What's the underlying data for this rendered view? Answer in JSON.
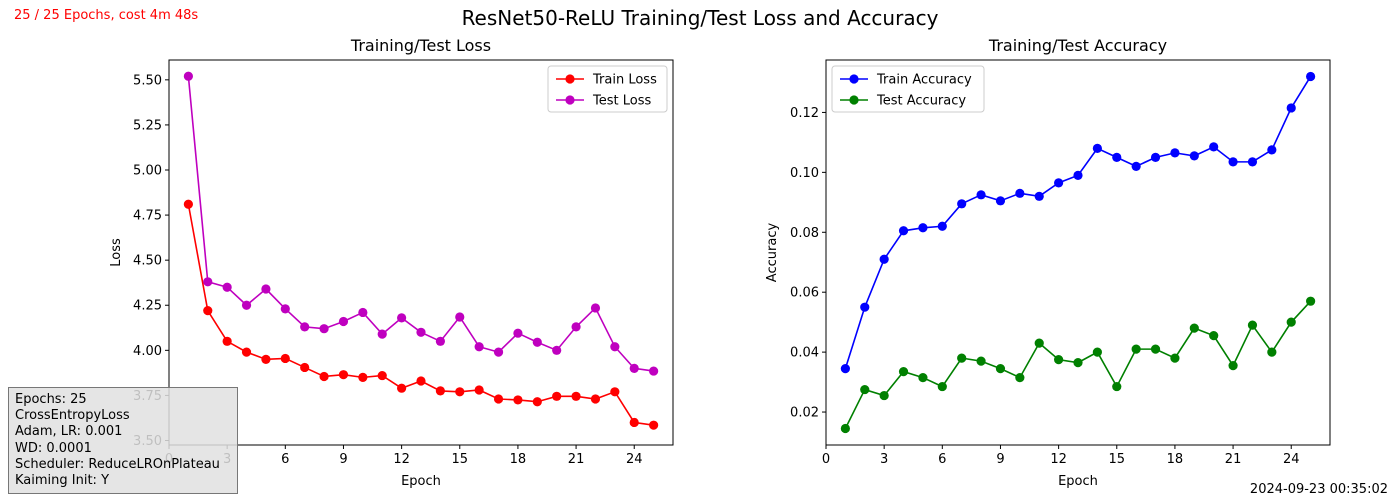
{
  "status": "25 / 25 Epochs, cost 4m 48s",
  "suptitle": "ResNet50-ReLU Training/Test Loss and Accuracy",
  "timestamp": "2024-09-23 00:35:02",
  "config_lines": [
    "Epochs: 25",
    "CrossEntropyLoss",
    "Adam, LR: 0.001",
    "WD: 0.0001",
    "Scheduler: ReduceLROnPlateau",
    "Kaiming Init: Y"
  ],
  "chart_data": [
    {
      "type": "line",
      "title": "Training/Test Loss",
      "xlabel": "Epoch",
      "ylabel": "Loss",
      "xlim": [
        0,
        26
      ],
      "ylim": [
        3.475,
        5.61
      ],
      "xticks": [
        0,
        3,
        6,
        9,
        12,
        15,
        18,
        21,
        24
      ],
      "xtick_labels": [
        "0",
        "3",
        "6",
        "9",
        "12",
        "15",
        "18",
        "21",
        "24"
      ],
      "yticks": [
        3.5,
        3.75,
        4.0,
        4.25,
        4.5,
        4.75,
        5.0,
        5.25,
        5.5
      ],
      "ytick_labels": [
        "3.50",
        "3.75",
        "4.00",
        "4.25",
        "4.50",
        "4.75",
        "5.00",
        "5.25",
        "5.50"
      ],
      "legend_position": "top-right",
      "grid": false,
      "x": [
        1,
        2,
        3,
        4,
        5,
        6,
        7,
        8,
        9,
        10,
        11,
        12,
        13,
        14,
        15,
        16,
        17,
        18,
        19,
        20,
        21,
        22,
        23,
        24,
        25
      ],
      "series": [
        {
          "name": "Train Loss",
          "color": "#ff0000",
          "values": [
            4.81,
            4.22,
            4.05,
            3.99,
            3.95,
            3.955,
            3.905,
            3.855,
            3.865,
            3.85,
            3.86,
            3.79,
            3.83,
            3.775,
            3.77,
            3.78,
            3.73,
            3.725,
            3.715,
            3.745,
            3.745,
            3.73,
            3.77,
            3.6,
            3.585
          ]
        },
        {
          "name": "Test Loss",
          "color": "#bf00bf",
          "values": [
            5.52,
            4.38,
            4.35,
            4.25,
            4.34,
            4.23,
            4.13,
            4.12,
            4.16,
            4.21,
            4.09,
            4.18,
            4.1,
            4.05,
            4.185,
            4.02,
            3.99,
            4.095,
            4.045,
            4.0,
            4.13,
            4.235,
            4.02,
            3.9,
            3.885
          ]
        }
      ]
    },
    {
      "type": "line",
      "title": "Training/Test Accuracy",
      "xlabel": "Epoch",
      "ylabel": "Accuracy",
      "xlim": [
        0,
        26
      ],
      "ylim": [
        0.009,
        0.1375
      ],
      "xticks": [
        0,
        3,
        6,
        9,
        12,
        15,
        18,
        21,
        24
      ],
      "xtick_labels": [
        "0",
        "3",
        "6",
        "9",
        "12",
        "15",
        "18",
        "21",
        "24"
      ],
      "yticks": [
        0.02,
        0.04,
        0.06,
        0.08,
        0.1,
        0.12
      ],
      "ytick_labels": [
        "0.02",
        "0.04",
        "0.06",
        "0.08",
        "0.10",
        "0.12"
      ],
      "legend_position": "top-left",
      "grid": false,
      "x": [
        1,
        2,
        3,
        4,
        5,
        6,
        7,
        8,
        9,
        10,
        11,
        12,
        13,
        14,
        15,
        16,
        17,
        18,
        19,
        20,
        21,
        22,
        23,
        24,
        25
      ],
      "series": [
        {
          "name": "Train Accuracy",
          "color": "#0000ff",
          "values": [
            0.0345,
            0.055,
            0.071,
            0.0805,
            0.0815,
            0.082,
            0.0895,
            0.0925,
            0.0905,
            0.093,
            0.092,
            0.0965,
            0.099,
            0.108,
            0.105,
            0.102,
            0.105,
            0.1065,
            0.1055,
            0.1085,
            0.1035,
            0.1035,
            0.1075,
            0.1215,
            0.132
          ]
        },
        {
          "name": "Test Accuracy",
          "color": "#008000",
          "values": [
            0.0145,
            0.0275,
            0.0255,
            0.0335,
            0.0315,
            0.0285,
            0.038,
            0.037,
            0.0345,
            0.0315,
            0.043,
            0.0375,
            0.0365,
            0.04,
            0.0285,
            0.041,
            0.041,
            0.038,
            0.048,
            0.0455,
            0.0355,
            0.049,
            0.04,
            0.05,
            0.057
          ]
        }
      ]
    }
  ]
}
